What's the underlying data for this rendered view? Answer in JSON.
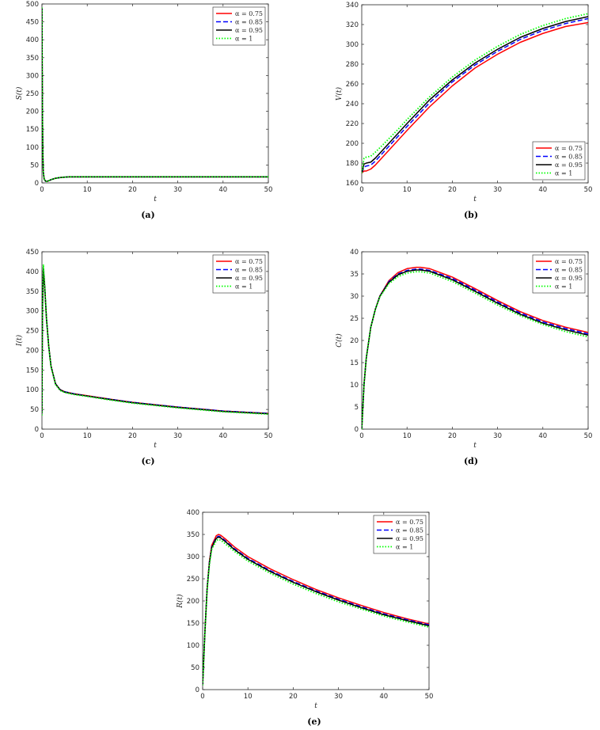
{
  "chart_data": [
    {
      "panel": "(a)",
      "type": "line",
      "xlabel": "t",
      "ylabel": "S(t)",
      "xlim": [
        0,
        50
      ],
      "ylim": [
        0,
        500
      ],
      "xticks": [
        0,
        10,
        20,
        30,
        40,
        50
      ],
      "yticks": [
        0,
        50,
        100,
        150,
        200,
        250,
        300,
        350,
        400,
        450,
        500
      ],
      "legend_position": "top-right",
      "grid": false,
      "series": [
        {
          "name": "α = 0.75",
          "color": "#ff0000",
          "style": "solid",
          "x": [
            0,
            0.1,
            0.2,
            0.3,
            0.5,
            0.8,
            1,
            1.5,
            2,
            3,
            4,
            5,
            6,
            8,
            10,
            20,
            30,
            40,
            50
          ],
          "y": [
            490,
            200,
            80,
            30,
            10,
            5,
            4,
            6,
            9,
            13,
            15,
            16,
            17,
            17,
            17,
            17,
            17,
            17,
            17
          ]
        },
        {
          "name": "α = 0.85",
          "color": "#0000ff",
          "style": "dashed",
          "x": [
            0,
            0.1,
            0.2,
            0.3,
            0.5,
            0.8,
            1,
            1.5,
            2,
            3,
            4,
            5,
            6,
            8,
            10,
            20,
            30,
            40,
            50
          ],
          "y": [
            490,
            200,
            80,
            30,
            10,
            5,
            4,
            6,
            9,
            13,
            15,
            16,
            17,
            17,
            17,
            17,
            17,
            17,
            17
          ]
        },
        {
          "name": "α = 0.95",
          "color": "#000000",
          "style": "solid",
          "x": [
            0,
            0.1,
            0.2,
            0.3,
            0.5,
            0.8,
            1,
            1.5,
            2,
            3,
            4,
            5,
            6,
            8,
            10,
            20,
            30,
            40,
            50
          ],
          "y": [
            490,
            200,
            80,
            30,
            10,
            5,
            4,
            6,
            9,
            13,
            15,
            16,
            17,
            17,
            17,
            17,
            17,
            17,
            17
          ]
        },
        {
          "name": "α = 1",
          "color": "#00ff00",
          "style": "dotted",
          "x": [
            0,
            0.1,
            0.2,
            0.3,
            0.5,
            0.8,
            1,
            1.5,
            2,
            3,
            4,
            5,
            6,
            8,
            10,
            20,
            30,
            40,
            50
          ],
          "y": [
            490,
            200,
            80,
            30,
            10,
            5,
            4,
            6,
            9,
            13,
            15,
            16,
            17,
            17,
            17,
            17,
            17,
            17,
            17
          ]
        }
      ]
    },
    {
      "panel": "(b)",
      "type": "line",
      "xlabel": "t",
      "ylabel": "V(t)",
      "xlim": [
        0,
        50
      ],
      "ylim": [
        160,
        340
      ],
      "xticks": [
        0,
        10,
        20,
        30,
        40,
        50
      ],
      "yticks": [
        160,
        180,
        200,
        220,
        240,
        260,
        280,
        300,
        320,
        340
      ],
      "legend_position": "bottom-right",
      "grid": false,
      "series": [
        {
          "name": "α = 0.75",
          "color": "#ff0000",
          "style": "solid",
          "x": [
            0,
            0.5,
            1,
            2,
            3,
            5,
            8,
            10,
            15,
            20,
            25,
            30,
            35,
            40,
            45,
            50
          ],
          "y": [
            170,
            172,
            172,
            174,
            178,
            188,
            203,
            213,
            237,
            258,
            276,
            290,
            302,
            311,
            318,
            322
          ]
        },
        {
          "name": "α = 0.85",
          "color": "#0000ff",
          "style": "dashed",
          "x": [
            0,
            0.5,
            1,
            2,
            3,
            5,
            8,
            10,
            15,
            20,
            25,
            30,
            35,
            40,
            45,
            50
          ],
          "y": [
            170,
            176,
            177,
            178,
            182,
            192,
            207,
            217,
            241,
            262,
            279,
            293,
            305,
            314,
            321,
            326
          ]
        },
        {
          "name": "α = 0.95",
          "color": "#000000",
          "style": "solid",
          "x": [
            0,
            0.5,
            1,
            2,
            3,
            5,
            8,
            10,
            15,
            20,
            25,
            30,
            35,
            40,
            45,
            50
          ],
          "y": [
            170,
            179,
            180,
            181,
            185,
            195,
            210,
            220,
            244,
            264,
            281,
            295,
            307,
            316,
            323,
            328
          ]
        },
        {
          "name": "α = 1",
          "color": "#00ff00",
          "style": "dotted",
          "x": [
            0,
            0.5,
            1,
            2,
            3,
            5,
            8,
            10,
            15,
            20,
            25,
            30,
            35,
            40,
            45,
            50
          ],
          "y": [
            170,
            185,
            186,
            187,
            191,
            200,
            214,
            224,
            247,
            267,
            284,
            298,
            310,
            319,
            326,
            331
          ]
        }
      ]
    },
    {
      "panel": "(c)",
      "type": "line",
      "xlabel": "t",
      "ylabel": "I(t)",
      "xlim": [
        0,
        50
      ],
      "ylim": [
        0,
        450
      ],
      "xticks": [
        0,
        10,
        20,
        30,
        40,
        50
      ],
      "yticks": [
        0,
        50,
        100,
        150,
        200,
        250,
        300,
        350,
        400,
        450
      ],
      "legend_position": "top-right",
      "grid": false,
      "series": [
        {
          "name": "α = 0.75",
          "color": "#ff0000",
          "style": "solid",
          "x": [
            0,
            0.1,
            0.3,
            0.6,
            1,
            1.5,
            2,
            3,
            4,
            5,
            7,
            10,
            15,
            20,
            30,
            40,
            50
          ],
          "y": [
            40,
            300,
            400,
            360,
            280,
            210,
            160,
            115,
            100,
            95,
            90,
            85,
            76,
            68,
            56,
            46,
            40
          ]
        },
        {
          "name": "α = 0.85",
          "color": "#0000ff",
          "style": "dashed",
          "x": [
            0,
            0.1,
            0.3,
            0.6,
            1,
            1.5,
            2,
            3,
            4,
            5,
            7,
            10,
            15,
            20,
            30,
            40,
            50
          ],
          "y": [
            40,
            300,
            405,
            362,
            280,
            210,
            160,
            115,
            100,
            95,
            90,
            84,
            76,
            68,
            56,
            46,
            40
          ]
        },
        {
          "name": "α = 0.95",
          "color": "#000000",
          "style": "solid",
          "x": [
            0,
            0.1,
            0.3,
            0.6,
            1,
            1.5,
            2,
            3,
            4,
            5,
            7,
            10,
            15,
            20,
            30,
            40,
            50
          ],
          "y": [
            40,
            300,
            410,
            364,
            280,
            210,
            160,
            115,
            100,
            94,
            89,
            84,
            75,
            67,
            55,
            45,
            39
          ]
        },
        {
          "name": "α = 1",
          "color": "#00ff00",
          "style": "dotted",
          "x": [
            0,
            0.1,
            0.3,
            0.6,
            1,
            1.5,
            2,
            3,
            4,
            5,
            7,
            10,
            15,
            20,
            30,
            40,
            50
          ],
          "y": [
            35,
            300,
            418,
            366,
            280,
            208,
            158,
            113,
            98,
            93,
            88,
            83,
            74,
            66,
            54,
            44,
            38
          ]
        }
      ]
    },
    {
      "panel": "(d)",
      "type": "line",
      "xlabel": "t",
      "ylabel": "C(t)",
      "xlim": [
        0,
        50
      ],
      "ylim": [
        0,
        40
      ],
      "xticks": [
        0,
        10,
        20,
        30,
        40,
        50
      ],
      "yticks": [
        0,
        5,
        10,
        15,
        20,
        25,
        30,
        35,
        40
      ],
      "legend_position": "top-right",
      "grid": false,
      "series": [
        {
          "name": "α = 0.75",
          "color": "#ff0000",
          "style": "solid",
          "x": [
            0,
            0.5,
            1,
            2,
            3,
            4,
            6,
            8,
            10,
            12,
            13,
            15,
            20,
            25,
            30,
            35,
            40,
            45,
            50
          ],
          "y": [
            0,
            10,
            16,
            23,
            27,
            30,
            33.5,
            35.3,
            36.2,
            36.5,
            36.5,
            36.2,
            34.3,
            31.7,
            29,
            26.5,
            24.5,
            23,
            21.8
          ]
        },
        {
          "name": "α = 0.85",
          "color": "#0000ff",
          "style": "dashed",
          "x": [
            0,
            0.5,
            1,
            2,
            3,
            4,
            6,
            8,
            10,
            12,
            13,
            15,
            20,
            25,
            30,
            35,
            40,
            45,
            50
          ],
          "y": [
            0,
            10,
            16,
            23,
            27,
            30,
            33.3,
            35,
            35.8,
            36.1,
            36.1,
            35.8,
            34,
            31.4,
            28.7,
            26.2,
            24.2,
            22.7,
            21.5
          ]
        },
        {
          "name": "α = 0.95",
          "color": "#000000",
          "style": "solid",
          "x": [
            0,
            0.5,
            1,
            2,
            3,
            4,
            6,
            8,
            10,
            12,
            13,
            15,
            20,
            25,
            30,
            35,
            40,
            45,
            50
          ],
          "y": [
            0,
            10,
            16,
            23,
            27,
            30,
            33.1,
            34.8,
            35.6,
            35.9,
            35.9,
            35.6,
            33.7,
            31.1,
            28.4,
            25.9,
            23.9,
            22.4,
            21.2
          ]
        },
        {
          "name": "α = 1",
          "color": "#00ff00",
          "style": "dotted",
          "x": [
            0,
            0.5,
            1,
            2,
            3,
            4,
            6,
            8,
            10,
            12,
            13,
            15,
            20,
            25,
            30,
            35,
            40,
            45,
            50
          ],
          "y": [
            0,
            10,
            16,
            23,
            27,
            29.8,
            32.8,
            34.4,
            35.2,
            35.5,
            35.5,
            35.2,
            33.3,
            30.7,
            28,
            25.6,
            23.6,
            22,
            20.8
          ]
        }
      ]
    },
    {
      "panel": "(e)",
      "type": "line",
      "xlabel": "t",
      "ylabel": "R(t)",
      "xlim": [
        0,
        50
      ],
      "ylim": [
        0,
        400
      ],
      "xticks": [
        0,
        10,
        20,
        30,
        40,
        50
      ],
      "yticks": [
        0,
        50,
        100,
        150,
        200,
        250,
        300,
        350,
        400
      ],
      "legend_position": "top-right",
      "grid": false,
      "series": [
        {
          "name": "α = 0.75",
          "color": "#ff0000",
          "style": "solid",
          "x": [
            0,
            0.5,
            1,
            1.5,
            2,
            3,
            3.5,
            4,
            5,
            7,
            10,
            15,
            20,
            25,
            30,
            35,
            40,
            45,
            50
          ],
          "y": [
            10,
            130,
            230,
            290,
            325,
            347,
            350,
            348,
            340,
            322,
            300,
            272,
            248,
            226,
            207,
            190,
            174,
            160,
            148
          ]
        },
        {
          "name": "α = 0.85",
          "color": "#0000ff",
          "style": "dashed",
          "x": [
            0,
            0.5,
            1,
            1.5,
            2,
            3,
            3.5,
            4,
            5,
            7,
            10,
            15,
            20,
            25,
            30,
            35,
            40,
            45,
            50
          ],
          "y": [
            10,
            130,
            230,
            288,
            322,
            343,
            346,
            344,
            336,
            318,
            296,
            268,
            244,
            223,
            204,
            187,
            171,
            158,
            146
          ]
        },
        {
          "name": "α = 0.95",
          "color": "#000000",
          "style": "solid",
          "x": [
            0,
            0.5,
            1,
            1.5,
            2,
            3,
            3.5,
            4,
            5,
            7,
            10,
            15,
            20,
            25,
            30,
            35,
            40,
            45,
            50
          ],
          "y": [
            10,
            130,
            228,
            286,
            320,
            341,
            344,
            342,
            334,
            316,
            294,
            266,
            242,
            221,
            202,
            185,
            169,
            156,
            144
          ]
        },
        {
          "name": "α = 1",
          "color": "#00ff00",
          "style": "dotted",
          "x": [
            0,
            0.5,
            1,
            1.5,
            2,
            3,
            3.5,
            4,
            5,
            7,
            10,
            15,
            20,
            25,
            30,
            35,
            40,
            45,
            50
          ],
          "y": [
            10,
            128,
            225,
            282,
            316,
            336,
            339,
            337,
            329,
            312,
            290,
            262,
            238,
            217,
            198,
            182,
            166,
            153,
            141
          ]
        }
      ]
    }
  ]
}
